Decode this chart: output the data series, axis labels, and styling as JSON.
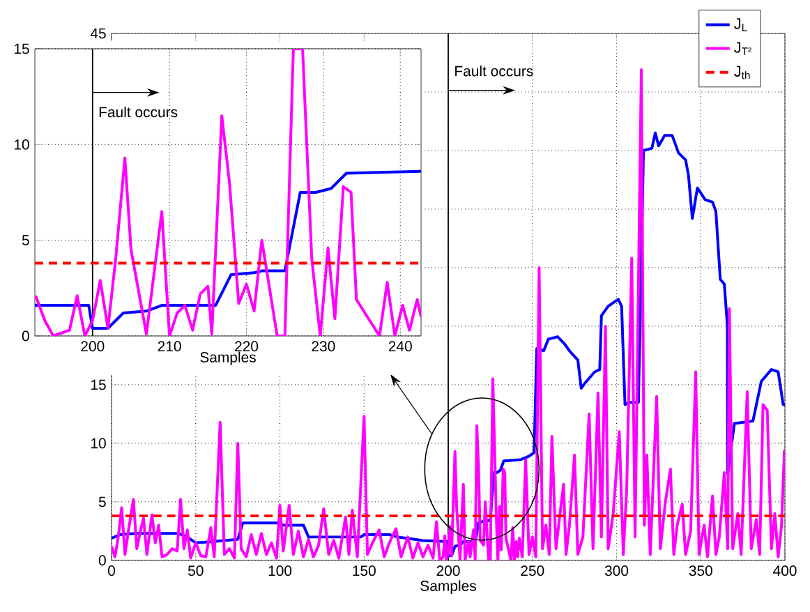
{
  "chart_data": [
    {
      "type": "line",
      "xlabel": "Samples",
      "xlim": [
        0,
        400
      ],
      "ylim": [
        0,
        45
      ],
      "xticks": [
        0,
        50,
        100,
        150,
        200,
        250,
        300,
        350,
        400
      ],
      "yticks": [
        0,
        5,
        10,
        15,
        {
          "value": 20,
          "label": null
        },
        {
          "value": 25,
          "label": null
        },
        {
          "value": 30,
          "label": null
        },
        {
          "value": 35,
          "label": null
        },
        {
          "value": 40,
          "label": null
        },
        45
      ],
      "grid": true,
      "legend": "top right",
      "ref_lines": [
        {
          "axis": "x",
          "value": 200,
          "color": "#000000"
        }
      ],
      "annotations": [
        {
          "text": "Fault occurs",
          "x": 200,
          "y": 41.8
        }
      ],
      "series": [
        {
          "name": "J$_{L}$",
          "color": "#0000ff",
          "x": [
            0,
            5,
            15,
            40,
            45,
            50,
            60,
            75,
            78,
            100,
            102,
            114,
            117,
            148,
            150,
            165,
            170,
            180,
            185,
            199.5,
            200,
            202,
            204,
            207,
            209,
            216,
            218,
            222,
            225,
            227,
            229,
            231,
            233,
            243,
            248,
            251,
            252.6,
            256.7,
            259.5,
            265,
            269,
            272,
            277,
            279,
            281,
            287,
            290,
            291,
            295,
            301,
            303,
            305,
            308,
            313,
            316,
            321,
            323,
            325,
            328.6,
            333,
            336.8,
            341,
            342.7,
            345,
            348,
            352.7,
            357,
            359,
            361.6,
            364,
            365.8,
            366,
            370,
            381,
            386,
            392,
            396,
            399,
            400
          ],
          "values": [
            1.9,
            2.2,
            2.3,
            2.3,
            2.0,
            1.5,
            1.6,
            1.8,
            3.2,
            3.2,
            3.0,
            3.0,
            2.0,
            2.0,
            2.2,
            2.2,
            2.0,
            1.8,
            1.7,
            1.6,
            0.4,
            0.4,
            1.2,
            1.3,
            1.6,
            1.6,
            3.2,
            3.4,
            3.4,
            7.5,
            7.5,
            7.7,
            8.5,
            8.6,
            8.9,
            9.2,
            18.1,
            17.9,
            18.9,
            19.1,
            18.5,
            17.9,
            17.1,
            14.7,
            15.1,
            16.1,
            16.3,
            20.9,
            21.7,
            22.3,
            21.7,
            13.3,
            13.5,
            13.5,
            35,
            35.2,
            36.5,
            35.4,
            36.3,
            36.3,
            34.8,
            34.2,
            32.9,
            29.2,
            31.8,
            30.8,
            30.6,
            29.8,
            24,
            23.6,
            20.1,
            7.4,
            11.7,
            11.9,
            15.3,
            16.3,
            16.1,
            13.3,
            13.3
          ]
        },
        {
          "name": "J$_{T²}$",
          "color": "#ff00ff",
          "x": [
            0,
            2,
            4,
            6,
            8,
            10,
            13,
            15,
            17,
            19,
            21,
            24,
            26,
            28,
            30,
            33,
            36,
            39,
            41,
            43,
            45,
            47,
            50,
            53,
            56,
            59,
            61,
            64.5,
            67,
            70,
            73,
            75,
            77,
            80,
            83,
            86,
            89,
            92,
            95,
            98,
            100,
            102,
            105.5,
            108,
            111,
            114,
            117,
            120,
            123,
            126,
            129,
            132,
            135,
            139,
            141,
            143,
            146,
            150,
            152,
            155,
            159,
            162,
            165,
            169,
            172,
            176,
            179,
            182,
            185,
            188,
            191,
            193,
            195,
            197,
            198,
            199,
            200,
            201,
            202,
            204,
            205,
            207,
            209,
            210,
            212,
            213,
            215,
            216,
            217,
            218,
            219,
            221,
            222,
            224,
            225,
            226.5,
            228.5,
            229.5,
            230.5,
            231.5,
            232.6,
            233.6,
            234.3,
            237.3,
            238.3,
            239.3,
            240.3,
            241.2,
            242.2,
            244,
            246,
            248,
            250,
            252,
            254,
            256,
            258,
            260,
            261.6,
            264,
            266,
            268.5,
            270,
            272,
            275,
            277,
            280,
            283.7,
            286,
            289,
            291,
            293.4,
            295,
            298,
            301.6,
            304,
            306,
            309,
            311,
            314.7,
            316.5,
            318,
            320,
            323.8,
            326,
            329,
            332,
            334,
            336,
            339,
            341,
            344,
            347,
            349,
            352,
            354,
            357,
            359,
            361,
            364,
            366,
            367,
            369,
            372,
            374,
            377.6,
            380,
            383,
            385,
            387,
            389.5,
            392,
            394,
            396,
            398,
            399.7
          ],
          "values": [
            1.2,
            0.3,
            2,
            4.5,
            0.5,
            2.5,
            5.2,
            1,
            2.4,
            3.6,
            0.5,
            3.9,
            1.5,
            3,
            0.3,
            0.5,
            1,
            0.8,
            5.2,
            1,
            2.6,
            0.2,
            1.5,
            0.4,
            0.3,
            2.8,
            0.3,
            11.8,
            0.5,
            1,
            0.2,
            10,
            1,
            0.3,
            2.2,
            0.5,
            2.3,
            0.5,
            1.5,
            0.2,
            4.7,
            0.8,
            4.7,
            0.5,
            2.5,
            0.3,
            1.8,
            0.3,
            1.3,
            4.4,
            0.5,
            1.7,
            0.2,
            3.7,
            0.5,
            4.3,
            0.3,
            12.3,
            0.5,
            1.5,
            2.6,
            0.3,
            1.5,
            2.7,
            0.3,
            2,
            0.2,
            1.5,
            0.3,
            1.3,
            0.2,
            3.3,
            0,
            0.3,
            2.1,
            0,
            0.7,
            2.9,
            0.4,
            9.3,
            4.5,
            0.1,
            6.5,
            0,
            1.6,
            0.3,
            2.6,
            0.1,
            11.5,
            8,
            1.7,
            1.3,
            5,
            0,
            0,
            15.5,
            4,
            0,
            4.6,
            0.9,
            7.8,
            7.5,
            1.9,
            0,
            2.8,
            0,
            1.6,
            0.3,
            1.9,
            0.3,
            8.6,
            0.5,
            2,
            0.3,
            25,
            1,
            3,
            0.5,
            10.6,
            1,
            3.5,
            6.5,
            0.5,
            3,
            9,
            0.5,
            2,
            12.5,
            1,
            14.3,
            2,
            20,
            1,
            4,
            11,
            0.5,
            6,
            25.8,
            2,
            41.9,
            3,
            9,
            0.5,
            14,
            1,
            5,
            7.8,
            0.5,
            3,
            4.8,
            0.5,
            2.5,
            16.1,
            0.5,
            3,
            0.3,
            5.5,
            0.5,
            2,
            7.5,
            1,
            21.5,
            1,
            4,
            0.5,
            14.4,
            1,
            3.5,
            0.5,
            13.3,
            12.8,
            1,
            4,
            0.3,
            3,
            9.4
          ]
        },
        {
          "name": "J$_{th}$",
          "color": "#ff0000",
          "line_style": "dashed",
          "x": [
            0,
            400
          ],
          "values": [
            3.8,
            3.8
          ]
        }
      ]
    },
    {
      "type": "line",
      "xlabel": "Samples",
      "xlim": [
        192.5,
        242.7
      ],
      "ylim": [
        0,
        15
      ],
      "xticks": [
        200,
        210,
        220,
        230,
        240
      ],
      "yticks": [
        0,
        5,
        10,
        15
      ],
      "grid": true,
      "ref_lines": [
        {
          "axis": "x",
          "value": 200,
          "color": "#000000"
        }
      ],
      "annotations": [
        {
          "text": "Fault occurs",
          "x": 200,
          "y": 11.7
        }
      ],
      "series": [
        {
          "color": "#0000ff",
          "x": [
            192.5,
            199.5,
            200,
            202,
            204,
            207,
            209,
            216,
            218,
            221,
            222,
            225,
            227,
            229,
            231,
            233,
            242.7
          ],
          "values": [
            1.6,
            1.6,
            0.4,
            0.4,
            1.2,
            1.3,
            1.6,
            1.6,
            3.2,
            3.3,
            3.4,
            3.4,
            7.5,
            7.5,
            7.7,
            8.5,
            8.6
          ]
        },
        {
          "color": "#ff00ff",
          "x": [
            192.6,
            193.8,
            194.9,
            197,
            198,
            199,
            200,
            201,
            202,
            203,
            204.2,
            205,
            207,
            209,
            210,
            211,
            212,
            213,
            214,
            215,
            215.5,
            216.8,
            217.8,
            219,
            220,
            221,
            222,
            224,
            225,
            226.1,
            227.3,
            228.5,
            229.6,
            230.6,
            231.5,
            232.6,
            233.6,
            234.3,
            237.3,
            238.3,
            239.3,
            240.3,
            241.2,
            242.2,
            242.7
          ],
          "values": [
            2.1,
            0.8,
            0,
            0.3,
            2.1,
            0,
            0.8,
            2.9,
            0.4,
            4.0,
            9.3,
            4.5,
            0.1,
            6.5,
            0,
            1.2,
            1.6,
            0.3,
            2.2,
            2.6,
            0.1,
            11.5,
            8,
            1.7,
            2.7,
            1.3,
            5.0,
            0,
            0,
            15,
            15,
            4,
            0,
            4.6,
            0.9,
            7.8,
            7.5,
            1.9,
            0,
            2.8,
            0,
            1.6,
            0.3,
            1.9,
            1.0
          ]
        },
        {
          "color": "#ff0000",
          "line_style": "dashed",
          "x": [
            192.5,
            242.7
          ],
          "values": [
            3.8,
            3.8
          ]
        }
      ]
    }
  ]
}
